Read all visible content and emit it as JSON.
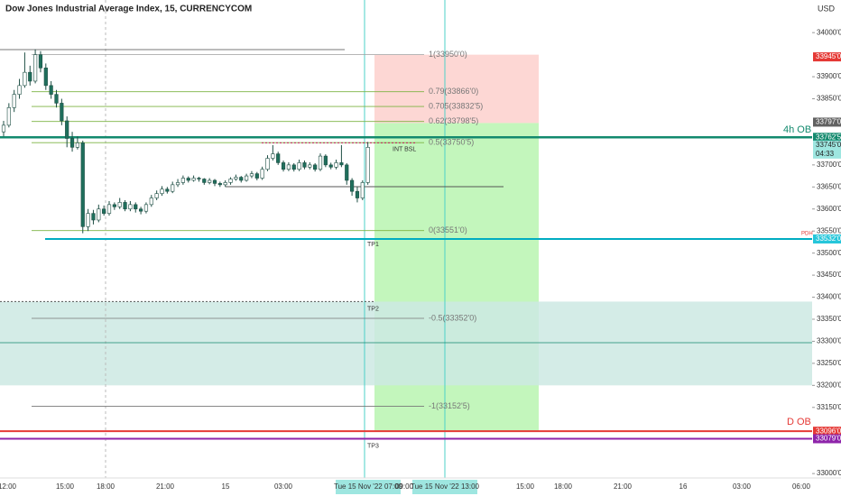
{
  "chart_data": {
    "type": "candlestick",
    "title": "Dow Jones Industrial Average Index, 15, CURRENCYCOM",
    "currency": "USD",
    "ylim": [
      32990,
      34074
    ],
    "yticks": [
      {
        "value": 34000,
        "label": "34000'0"
      },
      {
        "value": 33900,
        "label": "33900'0"
      },
      {
        "value": 33850,
        "label": "33850'0"
      },
      {
        "value": 33700,
        "label": "33700'0"
      },
      {
        "value": 33650,
        "label": "33650'0"
      },
      {
        "value": 33600,
        "label": "33600'0"
      },
      {
        "value": 33550,
        "label": "33550'0"
      },
      {
        "value": 33500,
        "label": "33500'0"
      },
      {
        "value": 33450,
        "label": "33450'0"
      },
      {
        "value": 33400,
        "label": "33400'0"
      },
      {
        "value": 33350,
        "label": "33350'0"
      },
      {
        "value": 33300,
        "label": "33300'0"
      },
      {
        "value": 33250,
        "label": "33250'0"
      },
      {
        "value": 33200,
        "label": "33200'0"
      },
      {
        "value": 33150,
        "label": "33150'0"
      },
      {
        "value": 33000,
        "label": "33000'0"
      }
    ],
    "colors": {
      "up": "#ffffff",
      "down": "#1f6f5c"
    },
    "candles": [
      [
        33775,
        33800,
        33765,
        33790
      ],
      [
        33790,
        33840,
        33785,
        33830
      ],
      [
        33830,
        33870,
        33820,
        33860
      ],
      [
        33860,
        33895,
        33850,
        33880
      ],
      [
        33880,
        33955,
        33875,
        33910
      ],
      [
        33910,
        33925,
        33880,
        33890
      ],
      [
        33890,
        33962,
        33885,
        33950
      ],
      [
        33950,
        33958,
        33910,
        33920
      ],
      [
        33920,
        33930,
        33870,
        33880
      ],
      [
        33880,
        33890,
        33850,
        33860
      ],
      [
        33860,
        33870,
        33830,
        33840
      ],
      [
        33840,
        33850,
        33790,
        33800
      ],
      [
        33800,
        33810,
        33740,
        33760
      ],
      [
        33760,
        33775,
        33730,
        33740
      ],
      [
        33740,
        33765,
        33735,
        33750
      ],
      [
        33750,
        33755,
        33545,
        33560
      ],
      [
        33560,
        33600,
        33550,
        33590
      ],
      [
        33590,
        33598,
        33565,
        33575
      ],
      [
        33575,
        33610,
        33570,
        33600
      ],
      [
        33600,
        33608,
        33585,
        33590
      ],
      [
        33590,
        33618,
        33585,
        33610
      ],
      [
        33610,
        33615,
        33598,
        33605
      ],
      [
        33605,
        33625,
        33600,
        33615
      ],
      [
        33615,
        33620,
        33595,
        33600
      ],
      [
        33600,
        33618,
        33595,
        33610
      ],
      [
        33610,
        33615,
        33592,
        33600
      ],
      [
        33600,
        33605,
        33588,
        33595
      ],
      [
        33595,
        33615,
        33590,
        33610
      ],
      [
        33610,
        33632,
        33605,
        33625
      ],
      [
        33625,
        33642,
        33620,
        33635
      ],
      [
        33635,
        33652,
        33630,
        33645
      ],
      [
        33645,
        33650,
        33635,
        33640
      ],
      [
        33640,
        33662,
        33636,
        33655
      ],
      [
        33655,
        33668,
        33650,
        33660
      ],
      [
        33660,
        33676,
        33655,
        33670
      ],
      [
        33670,
        33674,
        33660,
        33665
      ],
      [
        33665,
        33676,
        33662,
        33670
      ],
      [
        33670,
        33673,
        33662,
        33668
      ],
      [
        33668,
        33670,
        33655,
        33660
      ],
      [
        33660,
        33670,
        33656,
        33665
      ],
      [
        33665,
        33668,
        33652,
        33658
      ],
      [
        33658,
        33662,
        33650,
        33655
      ],
      [
        33655,
        33665,
        33650,
        33660
      ],
      [
        33660,
        33672,
        33655,
        33668
      ],
      [
        33668,
        33678,
        33664,
        33672
      ],
      [
        33672,
        33675,
        33660,
        33665
      ],
      [
        33665,
        33680,
        33662,
        33675
      ],
      [
        33675,
        33686,
        33670,
        33680
      ],
      [
        33680,
        33684,
        33665,
        33670
      ],
      [
        33670,
        33696,
        33666,
        33690
      ],
      [
        33690,
        33722,
        33686,
        33715
      ],
      [
        33715,
        33745,
        33710,
        33725
      ],
      [
        33725,
        33730,
        33700,
        33705
      ],
      [
        33705,
        33710,
        33685,
        33690
      ],
      [
        33690,
        33706,
        33686,
        33700
      ],
      [
        33700,
        33704,
        33685,
        33690
      ],
      [
        33690,
        33712,
        33686,
        33705
      ],
      [
        33705,
        33710,
        33690,
        33695
      ],
      [
        33695,
        33706,
        33690,
        33700
      ],
      [
        33700,
        33704,
        33685,
        33690
      ],
      [
        33690,
        33726,
        33686,
        33720
      ],
      [
        33720,
        33724,
        33695,
        33700
      ],
      [
        33700,
        33705,
        33690,
        33695
      ],
      [
        33695,
        33712,
        33690,
        33705
      ],
      [
        33705,
        33745,
        33695,
        33700
      ],
      [
        33700,
        33704,
        33655,
        33665
      ],
      [
        33665,
        33670,
        33630,
        33640
      ],
      [
        33640,
        33650,
        33615,
        33625
      ],
      [
        33625,
        33665,
        33620,
        33660
      ],
      [
        33660,
        33752,
        33655,
        33740
      ]
    ],
    "time_labels": [
      "12:00",
      "15:00",
      "18:00",
      "21:00",
      "15",
      "03:00",
      "Tue 15 Nov '22  07:00",
      "09:00",
      "Tue 15 Nov '22  13:00",
      "15:00",
      "18:00",
      "21:00",
      "16",
      "03:00",
      "06:00"
    ],
    "zones": [
      {
        "top": 33950,
        "bottom": 33795,
        "color": "#fdd0cc"
      },
      {
        "top": 33795,
        "bottom": 33096,
        "color": "#b9f5b0"
      },
      {
        "top": 33390,
        "bottom": 33200,
        "color": "#cde9e3"
      }
    ],
    "levels": [
      {
        "label": "1(33950'0)",
        "value": 33950,
        "color": "#9e9e9e"
      },
      {
        "label": "0.79(33866'0)",
        "value": 33866,
        "color": "#7cb342"
      },
      {
        "label": "0.705(33832'5)",
        "value": 33832.5,
        "color": "#7cb342"
      },
      {
        "label": "0.62(33798'5)",
        "value": 33798.5,
        "color": "#7cb342"
      },
      {
        "label": "0.5(33750'5)",
        "value": 33750.5,
        "color": "#7cb342"
      },
      {
        "label": "0(33551'0)",
        "value": 33551,
        "color": "#7cb342"
      },
      {
        "label": "-0.5(33352'0)",
        "value": 33352,
        "color": "#777777"
      },
      {
        "label": "-1(33152'5)",
        "value": 33152.5,
        "color": "#777777"
      }
    ],
    "lines": [
      {
        "label": "4h OB",
        "value": 33762.5,
        "color": "#138a6e"
      },
      {
        "label": "INT BSL",
        "value": 33750,
        "color": "#c2185b"
      },
      {
        "label": "TP1",
        "value": 33532,
        "color": "#00acc1"
      },
      {
        "label": "TP2",
        "value": 33390,
        "color": "#555555"
      },
      {
        "label": "D OB",
        "value": 33096,
        "color": "#e53935"
      },
      {
        "label": "TP3",
        "value": 33079,
        "color": "#8e24aa"
      }
    ],
    "price_badges": [
      {
        "label": "33945'0",
        "value": 33945,
        "color": "#e53935"
      },
      {
        "label": "33797'0",
        "value": 33797,
        "color": "#616161"
      },
      {
        "label": "33762'5",
        "value": 33762.5,
        "color": "#138a6e"
      },
      {
        "label": "33745'0",
        "value": 33745,
        "color": "#9ee6e0",
        "countdown": "04:33"
      },
      {
        "label": "33532'0",
        "value": 33532,
        "color": "#26c6da",
        "tag": "PDH"
      },
      {
        "label": "33096'0",
        "value": 33096,
        "color": "#e53935"
      },
      {
        "label": "33079'0",
        "value": 33079,
        "color": "#8e24aa"
      }
    ]
  }
}
